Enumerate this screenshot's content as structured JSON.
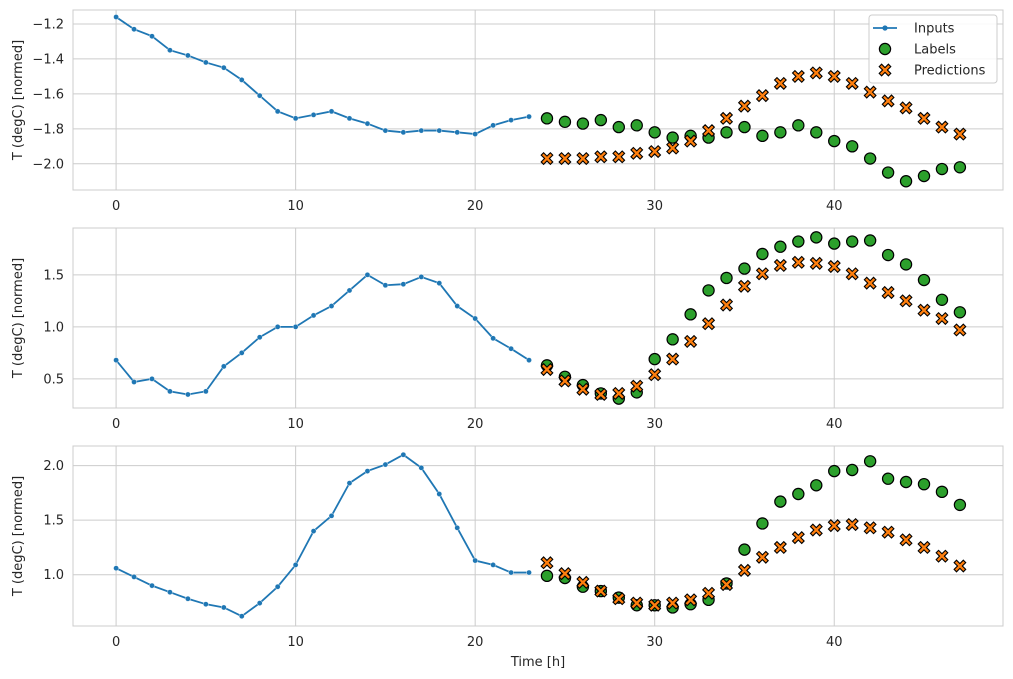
{
  "colors": {
    "inputs": "#1f77b4",
    "labels": "#2ca02c",
    "predictions": "#ff7f0e",
    "grid": "#cccccc",
    "marker_edge": "#000000",
    "background": "#ffffff"
  },
  "legend": {
    "placement": "top-right",
    "entries": [
      "Inputs",
      "Labels",
      "Predictions"
    ]
  },
  "chart_data": [
    {
      "type": "line",
      "ylabel": "T (degC) [normed]",
      "xlabel": "",
      "xlim": [
        -2.4,
        49.4
      ],
      "ylim": [
        -2.15,
        -1.12
      ],
      "xticks": [
        0,
        10,
        20,
        30,
        40
      ],
      "yticks": [
        -2.0,
        -1.8,
        -1.6,
        -1.4,
        -1.2
      ],
      "ytick_labels": [
        "−2.0",
        "−1.8",
        "−1.6",
        "−1.4",
        "−1.2"
      ],
      "grid": true,
      "series": [
        {
          "name": "Inputs",
          "kind": "line-markers",
          "x": [
            0,
            1,
            2,
            3,
            4,
            5,
            6,
            7,
            8,
            9,
            10,
            11,
            12,
            13,
            14,
            15,
            16,
            17,
            18,
            19,
            20,
            21,
            22,
            23
          ],
          "values": [
            -1.16,
            -1.23,
            -1.27,
            -1.35,
            -1.38,
            -1.42,
            -1.45,
            -1.52,
            -1.61,
            -1.7,
            -1.74,
            -1.72,
            -1.7,
            -1.74,
            -1.77,
            -1.81,
            -1.82,
            -1.81,
            -1.81,
            -1.82,
            -1.83,
            -1.78,
            -1.75,
            -1.73
          ]
        },
        {
          "name": "Labels",
          "kind": "circle",
          "x": [
            24,
            25,
            26,
            27,
            28,
            29,
            30,
            31,
            32,
            33,
            34,
            35,
            36,
            37,
            38,
            39,
            40,
            41,
            42,
            43,
            44,
            45,
            46,
            47
          ],
          "values": [
            -1.74,
            -1.76,
            -1.77,
            -1.75,
            -1.79,
            -1.78,
            -1.82,
            -1.85,
            -1.84,
            -1.85,
            -1.82,
            -1.79,
            -1.84,
            -1.82,
            -1.78,
            -1.82,
            -1.87,
            -1.9,
            -1.97,
            -2.05,
            -2.1,
            -2.07,
            -2.03,
            -2.02
          ]
        },
        {
          "name": "Predictions",
          "kind": "x",
          "x": [
            24,
            25,
            26,
            27,
            28,
            29,
            30,
            31,
            32,
            33,
            34,
            35,
            36,
            37,
            38,
            39,
            40,
            41,
            42,
            43,
            44,
            45,
            46,
            47
          ],
          "values": [
            -1.97,
            -1.97,
            -1.97,
            -1.96,
            -1.96,
            -1.94,
            -1.93,
            -1.91,
            -1.87,
            -1.81,
            -1.74,
            -1.67,
            -1.61,
            -1.54,
            -1.5,
            -1.48,
            -1.5,
            -1.54,
            -1.59,
            -1.64,
            -1.68,
            -1.74,
            -1.79,
            -1.83
          ]
        }
      ]
    },
    {
      "type": "line",
      "ylabel": "T (degC) [normed]",
      "xlabel": "",
      "xlim": [
        -2.4,
        49.4
      ],
      "ylim": [
        0.22,
        1.95
      ],
      "xticks": [
        0,
        10,
        20,
        30,
        40
      ],
      "yticks": [
        0.5,
        1.0,
        1.5
      ],
      "ytick_labels": [
        "0.5",
        "1.0",
        "1.5"
      ],
      "grid": true,
      "series": [
        {
          "name": "Inputs",
          "kind": "line-markers",
          "x": [
            0,
            1,
            2,
            3,
            4,
            5,
            6,
            7,
            8,
            9,
            10,
            11,
            12,
            13,
            14,
            15,
            16,
            17,
            18,
            19,
            20,
            21,
            22,
            23
          ],
          "values": [
            0.68,
            0.47,
            0.5,
            0.38,
            0.35,
            0.38,
            0.62,
            0.75,
            0.9,
            1.0,
            1.0,
            1.11,
            1.2,
            1.35,
            1.5,
            1.4,
            1.41,
            1.48,
            1.42,
            1.2,
            1.08,
            0.89,
            0.79,
            0.68
          ]
        },
        {
          "name": "Labels",
          "kind": "circle",
          "x": [
            24,
            25,
            26,
            27,
            28,
            29,
            30,
            31,
            32,
            33,
            34,
            35,
            36,
            37,
            38,
            39,
            40,
            41,
            42,
            43,
            44,
            45,
            46,
            47
          ],
          "values": [
            0.63,
            0.52,
            0.44,
            0.36,
            0.31,
            0.37,
            0.69,
            0.88,
            1.12,
            1.35,
            1.47,
            1.56,
            1.7,
            1.77,
            1.82,
            1.86,
            1.8,
            1.82,
            1.83,
            1.69,
            1.6,
            1.45,
            1.26,
            1.14
          ]
        },
        {
          "name": "Predictions",
          "kind": "x",
          "x": [
            24,
            25,
            26,
            27,
            28,
            29,
            30,
            31,
            32,
            33,
            34,
            35,
            36,
            37,
            38,
            39,
            40,
            41,
            42,
            43,
            44,
            45,
            46,
            47
          ],
          "values": [
            0.59,
            0.48,
            0.4,
            0.35,
            0.36,
            0.43,
            0.54,
            0.69,
            0.86,
            1.03,
            1.21,
            1.39,
            1.51,
            1.59,
            1.62,
            1.61,
            1.58,
            1.51,
            1.42,
            1.33,
            1.25,
            1.16,
            1.08,
            0.97
          ]
        }
      ]
    },
    {
      "type": "line",
      "ylabel": "T (degC) [normed]",
      "xlabel": "Time [h]",
      "xlim": [
        -2.4,
        49.4
      ],
      "ylim": [
        0.53,
        2.18
      ],
      "xticks": [
        0,
        10,
        20,
        30,
        40
      ],
      "yticks": [
        1.0,
        1.5,
        2.0
      ],
      "ytick_labels": [
        "1.0",
        "1.5",
        "2.0"
      ],
      "grid": true,
      "series": [
        {
          "name": "Inputs",
          "kind": "line-markers",
          "x": [
            0,
            1,
            2,
            3,
            4,
            5,
            6,
            7,
            8,
            9,
            10,
            11,
            12,
            13,
            14,
            15,
            16,
            17,
            18,
            19,
            20,
            21,
            22,
            23
          ],
          "values": [
            1.06,
            0.98,
            0.9,
            0.84,
            0.78,
            0.73,
            0.7,
            0.62,
            0.74,
            0.89,
            1.09,
            1.4,
            1.54,
            1.84,
            1.95,
            2.01,
            2.1,
            1.98,
            1.74,
            1.43,
            1.13,
            1.09,
            1.02,
            1.02
          ]
        },
        {
          "name": "Labels",
          "kind": "circle",
          "x": [
            24,
            25,
            26,
            27,
            28,
            29,
            30,
            31,
            32,
            33,
            34,
            35,
            36,
            37,
            38,
            39,
            40,
            41,
            42,
            43,
            44,
            45,
            46,
            47
          ],
          "values": [
            0.99,
            0.97,
            0.89,
            0.85,
            0.79,
            0.72,
            0.72,
            0.7,
            0.73,
            0.77,
            0.92,
            1.23,
            1.47,
            1.67,
            1.74,
            1.82,
            1.95,
            1.96,
            2.04,
            1.88,
            1.85,
            1.83,
            1.76,
            1.64
          ]
        },
        {
          "name": "Predictions",
          "kind": "x",
          "x": [
            24,
            25,
            26,
            27,
            28,
            29,
            30,
            31,
            32,
            33,
            34,
            35,
            36,
            37,
            38,
            39,
            40,
            41,
            42,
            43,
            44,
            45,
            46,
            47
          ],
          "values": [
            1.11,
            1.01,
            0.93,
            0.85,
            0.78,
            0.74,
            0.72,
            0.74,
            0.77,
            0.83,
            0.91,
            1.04,
            1.16,
            1.25,
            1.34,
            1.41,
            1.45,
            1.46,
            1.43,
            1.39,
            1.32,
            1.25,
            1.17,
            1.08
          ]
        }
      ]
    }
  ]
}
